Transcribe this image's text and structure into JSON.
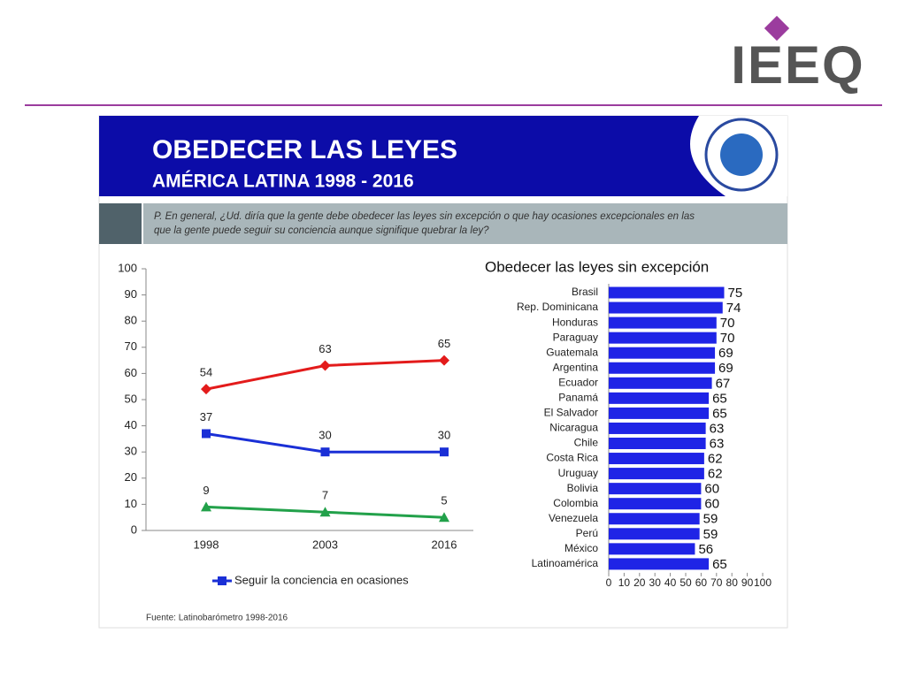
{
  "header": {
    "logo": "IEEQ",
    "title": "OBEDECER LAS LEYES",
    "subtitle": "AMÉRICA LATINA 1998 - 2016",
    "question": [
      "P. En general, ¿Ud. diría que la gente debe obedecer las leyes sin excepción o que hay ocasiones excepcionales en las",
      "que la gente puede seguir su conciencia aunque signifique quebrar la ley?"
    ],
    "source": "Fuente: Latinobarómetro 1998-2016"
  },
  "chart_data": [
    {
      "type": "line",
      "categories": [
        "1998",
        "2003",
        "2016"
      ],
      "series": [
        {
          "color": "#e31b1b",
          "marker": "diamond",
          "values": [
            54,
            63,
            65
          ]
        },
        {
          "name": "Seguir la conciencia en ocasiones",
          "color": "#1a2fd6",
          "marker": "square",
          "values": [
            37,
            30,
            30
          ]
        },
        {
          "color": "#22a14a",
          "marker": "triangle",
          "values": [
            9,
            7,
            5
          ]
        }
      ],
      "ylim": [
        0,
        100
      ],
      "yticks": [
        0,
        10,
        20,
        30,
        40,
        50,
        60,
        70,
        80,
        90,
        100
      ]
    },
    {
      "type": "barh",
      "title": "Obedecer las leyes sin excepción",
      "color": "#1f24e6",
      "categories": [
        "Brasil",
        "Rep. Dominicana",
        "Honduras",
        "Paraguay",
        "Guatemala",
        "Argentina",
        "Ecuador",
        "Panamá",
        "El Salvador",
        "Nicaragua",
        "Chile",
        "Costa Rica",
        "Uruguay",
        "Bolivia",
        "Colombia",
        "Venezuela",
        "Perú",
        "México",
        "Latinoamérica"
      ],
      "values": [
        75,
        74,
        70,
        70,
        69,
        69,
        67,
        65,
        65,
        63,
        63,
        62,
        62,
        60,
        60,
        59,
        59,
        56,
        65
      ],
      "xlim": [
        0,
        100
      ],
      "xticks": [
        0,
        10,
        20,
        30,
        40,
        50,
        60,
        70,
        80,
        90,
        100
      ]
    }
  ]
}
